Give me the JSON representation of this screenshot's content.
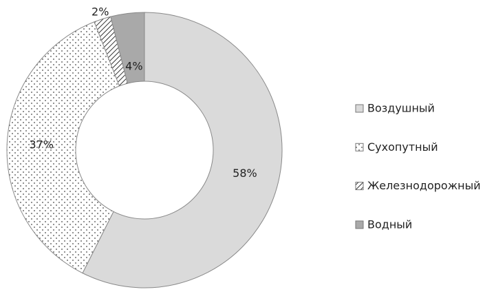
{
  "chart_data": {
    "type": "donut",
    "categories": [
      "Воздушный",
      "Сухопутный",
      "Железнодорожный",
      "Водный"
    ],
    "values": [
      58,
      37,
      2,
      4
    ],
    "value_labels": [
      "58%",
      "37%",
      "2%",
      "4%"
    ],
    "colors": [
      "#dadada",
      "#ffffff",
      "#ffffff",
      "#a9a9a9"
    ],
    "patterns": [
      "none",
      "dots",
      "diagonal-hatch",
      "none"
    ],
    "legend": "right"
  }
}
